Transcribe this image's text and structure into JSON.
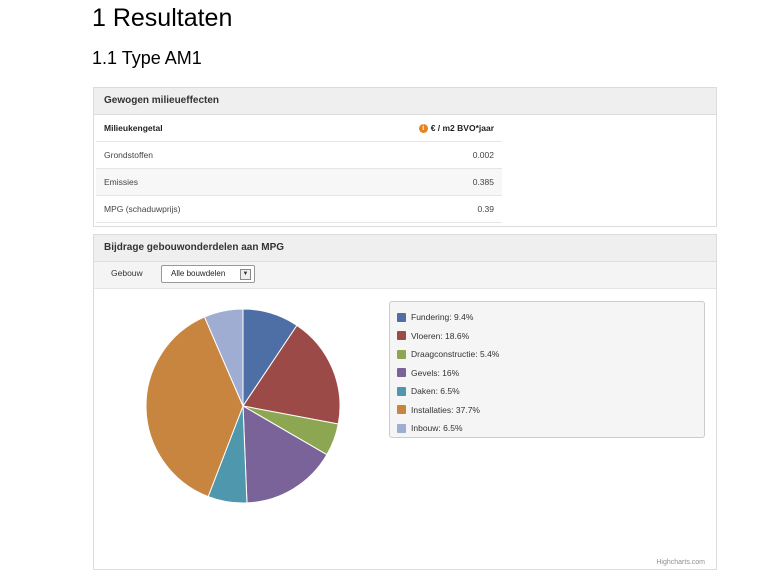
{
  "page": {
    "h1": "1  Resultaten",
    "h2": "1.1  Type AM1"
  },
  "milieu": {
    "header": "Gewogen milieueffecten",
    "col_label": "Milieukengetal",
    "col_unit": "€ / m2 BVO*jaar",
    "rows": [
      {
        "label": "Grondstoffen",
        "value": "0.002"
      },
      {
        "label": "Emissies",
        "value": "0.385"
      },
      {
        "label": "MPG (schaduwprijs)",
        "value": "0.39"
      }
    ]
  },
  "bijdrage": {
    "header": "Bijdrage gebouwonderdelen aan MPG",
    "filter_label": "Gebouw",
    "filter_value": "Alle bouwdelen",
    "credits": "Highcharts.com"
  },
  "chart_data": {
    "type": "pie",
    "title": "",
    "categories": [
      "Fundering",
      "Vloeren",
      "Draagconstructie",
      "Gevels",
      "Daken",
      "Installaties",
      "Inbouw"
    ],
    "values": [
      9.4,
      18.6,
      5.4,
      16,
      6.5,
      37.7,
      6.5
    ],
    "labels": [
      "Fundering: 9.4%",
      "Vloeren: 18.6%",
      "Draagconstructie: 5.4%",
      "Gevels: 16%",
      "Daken: 6.5%",
      "Installaties: 37.7%",
      "Inbouw: 6.5%"
    ],
    "colors": [
      "#4e6fa6",
      "#9b4a48",
      "#8da651",
      "#7a6399",
      "#4f97ad",
      "#c8853f",
      "#9fadd2"
    ],
    "legend_position": "right"
  }
}
